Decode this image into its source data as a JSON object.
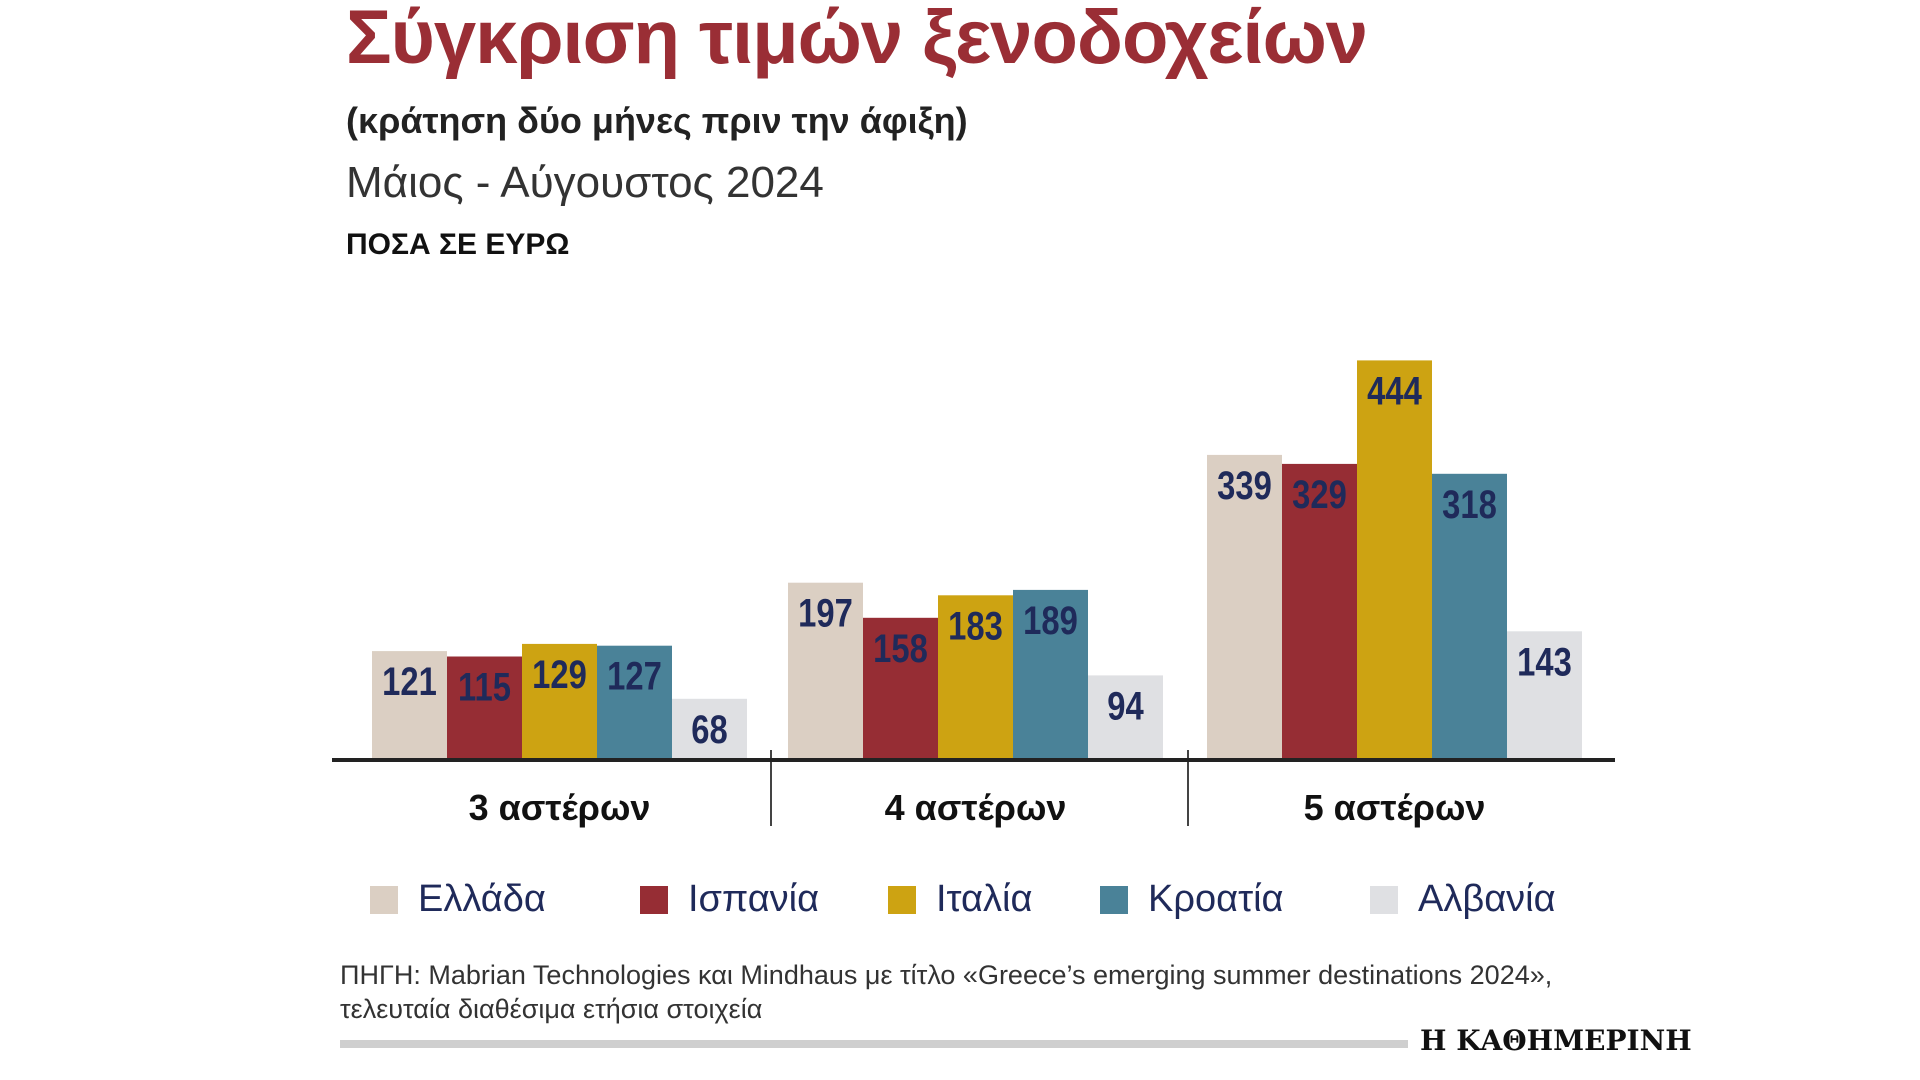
{
  "header": {
    "title": "Σύγκριση τιμών ξενοδοχείων",
    "subtitle": "(κράτηση δύο μήνες πριν την άφιξη)",
    "period": "Μάιος - Αύγουστος 2024",
    "units": "ΠΟΣΑ ΣΕ ΕΥΡΩ"
  },
  "chart_data": {
    "type": "bar",
    "title": "Σύγκριση τιμών ξενοδοχείων",
    "subtitle": "(κράτηση δύο μήνες πριν την άφιξη)",
    "xlabel": "",
    "ylabel": "ΠΟΣΑ ΣΕ ΕΥΡΩ",
    "ylim": [
      0,
      450
    ],
    "grid": false,
    "legend_position": "bottom",
    "categories": [
      "3 αστέρων",
      "4 αστέρων",
      "5 αστέρων"
    ],
    "series": [
      {
        "name": "Ελλάδα",
        "color": "#dbcfc3",
        "values": [
          121,
          197,
          339
        ]
      },
      {
        "name": "Ισπανία",
        "color": "#962d34",
        "values": [
          115,
          158,
          329
        ]
      },
      {
        "name": "Ιταλία",
        "color": "#cda312",
        "values": [
          129,
          183,
          444
        ]
      },
      {
        "name": "Κροατία",
        "color": "#4a8298",
        "values": [
          127,
          189,
          318
        ]
      },
      {
        "name": "Αλβανία",
        "color": "#dfe0e3",
        "values": [
          68,
          94,
          143
        ]
      }
    ],
    "label_color": "#1f2a5a"
  },
  "footer": {
    "source": "ΠΗΓΗ: Mabrian Technologies και Mindhaus με τίτλο «Greece’s emerging summer destinations 2024», τελευταία διαθέσιμα ετήσια στοιχεία",
    "brand": "Η ΚΑΘΗΜΕΡΙΝΗ"
  }
}
